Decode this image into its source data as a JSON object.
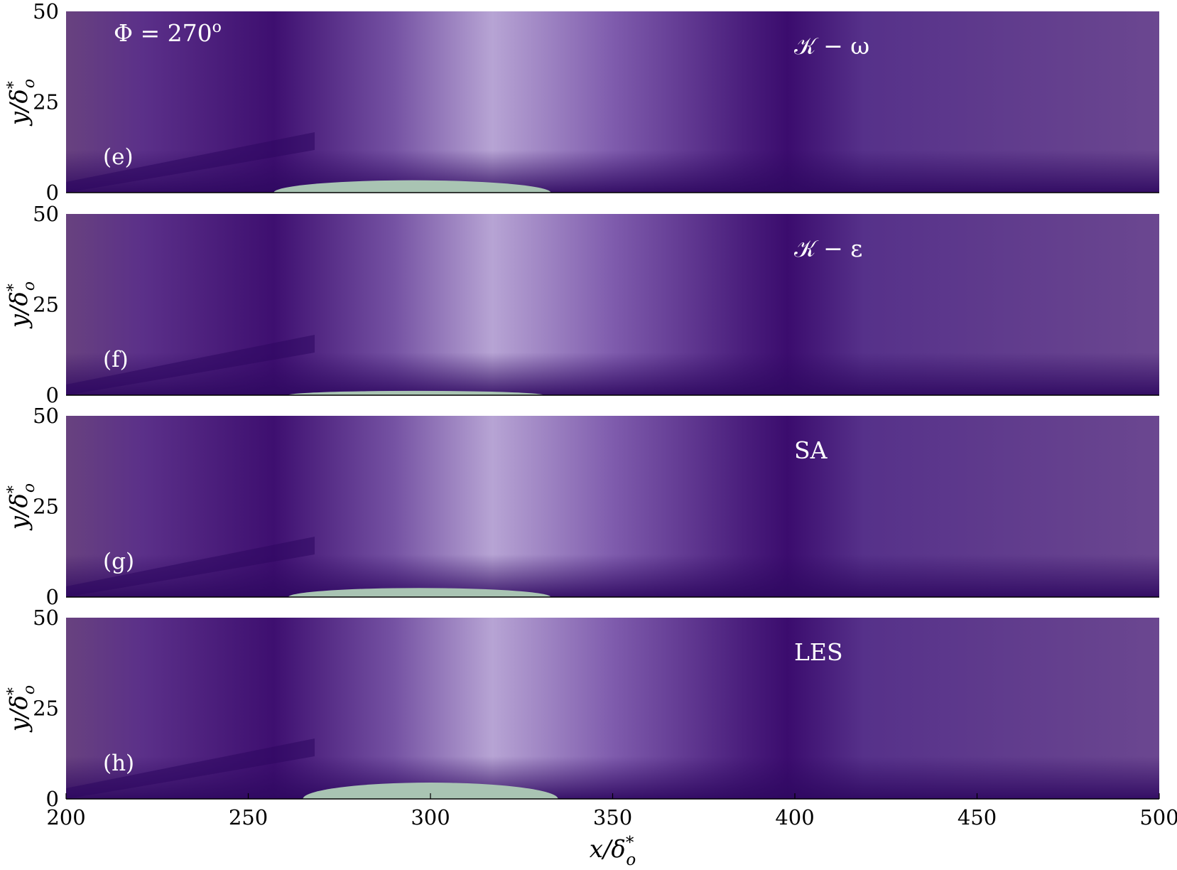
{
  "chart_data": {
    "type": "heatmap",
    "phase_label": "Φ = 270",
    "phase_superscript": "o",
    "colors": {
      "dark": "#3b0c6e",
      "mid": "#6c4796",
      "light": "#b7a4d4",
      "white": "#ffffff",
      "negative": "#1e5b38"
    },
    "x_axis": {
      "label": "x/δ",
      "label_sup": "*",
      "label_sub": "o",
      "range": [
        200,
        500
      ],
      "ticks": [
        200,
        250,
        300,
        350,
        400,
        450,
        500
      ],
      "tick_labels": [
        "200",
        "250",
        "300",
        "350",
        "400",
        "450",
        "500"
      ]
    },
    "y_axis": {
      "label": "y/δ",
      "label_sup": "*",
      "label_sub": "o",
      "range": [
        0,
        50
      ],
      "ticks": [
        0,
        25,
        50
      ],
      "tick_labels": [
        "0",
        "25",
        "50"
      ]
    },
    "panels": [
      {
        "panel_label": "(e)",
        "model": "𝒦 − ω",
        "negative_region": {
          "x_center": 295,
          "half_width": 38,
          "height": 3.4
        }
      },
      {
        "panel_label": "(f)",
        "model": "𝒦 − ε",
        "negative_region": {
          "x_center": 296,
          "half_width": 35,
          "height": 1.2
        }
      },
      {
        "panel_label": "(g)",
        "model": "SA",
        "negative_region": {
          "x_center": 297,
          "half_width": 36,
          "height": 2.5
        }
      },
      {
        "panel_label": "(h)",
        "model": "LES",
        "negative_region": {
          "x_center": 300,
          "half_width": 35,
          "height": 4.5
        }
      }
    ]
  }
}
